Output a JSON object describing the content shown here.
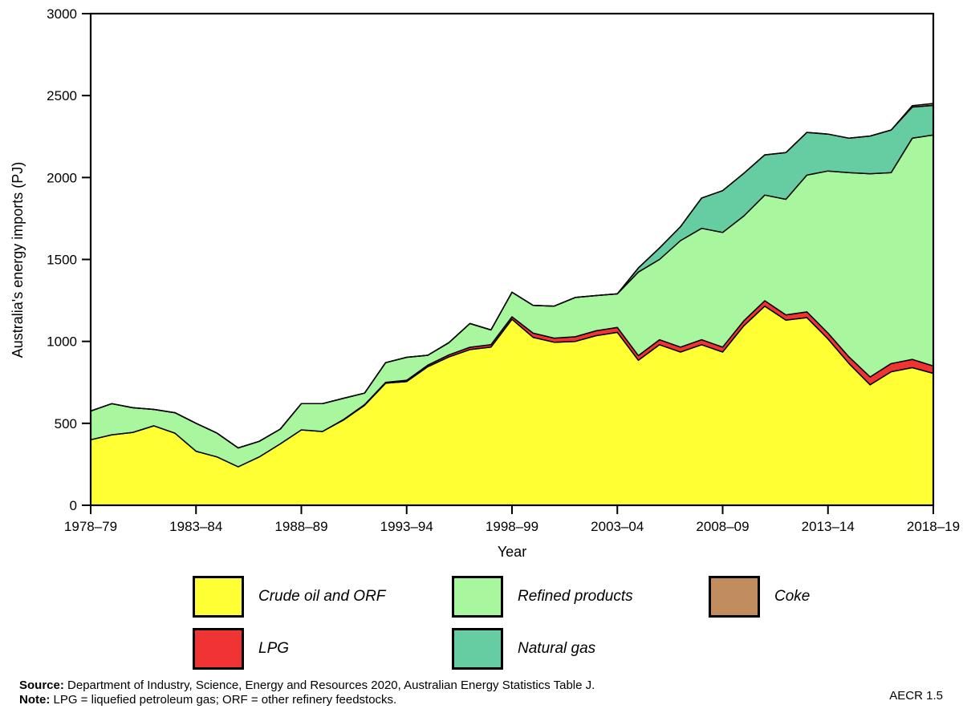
{
  "chart_data": {
    "type": "area",
    "stacked": true,
    "xlabel": "Year",
    "ylabel": "Australia's energy imports (PJ)",
    "ylim": [
      0,
      3000
    ],
    "y_ticks": [
      0,
      500,
      1000,
      1500,
      2000,
      2500,
      3000
    ],
    "x_tick_labels": [
      "1978–79",
      "1983–84",
      "1988–89",
      "1993–94",
      "1998–99",
      "2003–04",
      "2008–09",
      "2013–14",
      "2018–19"
    ],
    "x_tick_every": 5,
    "grid": false,
    "legend_position": "bottom",
    "outline_color": "#000000",
    "categories": [
      "1978–79",
      "1979–80",
      "1980–81",
      "1981–82",
      "1982–83",
      "1983–84",
      "1984–85",
      "1985–86",
      "1986–87",
      "1987–88",
      "1988–89",
      "1989–90",
      "1990–91",
      "1991–92",
      "1992–93",
      "1993–94",
      "1994–95",
      "1995–96",
      "1996–97",
      "1997–98",
      "1998–99",
      "1999–00",
      "2000–01",
      "2001–02",
      "2002–03",
      "2003–04",
      "2004–05",
      "2005–06",
      "2006–07",
      "2007–08",
      "2008–09",
      "2009–10",
      "2010–11",
      "2011–12",
      "2012–13",
      "2013–14",
      "2014–15",
      "2015–16",
      "2016–17",
      "2017–18",
      "2018–19"
    ],
    "series": [
      {
        "name": "Crude oil and ORF",
        "color": "#FFFF33",
        "values": [
          400,
          430,
          445,
          485,
          440,
          330,
          295,
          235,
          295,
          375,
          460,
          450,
          520,
          610,
          745,
          755,
          845,
          905,
          950,
          965,
          1135,
          1025,
          995,
          1000,
          1035,
          1055,
          885,
          980,
          935,
          980,
          935,
          1095,
          1215,
          1130,
          1145,
          1015,
          865,
          735,
          815,
          840,
          805
        ]
      },
      {
        "name": "LPG",
        "color": "#F03433",
        "values": [
          0,
          0,
          0,
          0,
          0,
          0,
          0,
          0,
          0,
          0,
          0,
          0,
          3,
          4,
          5,
          8,
          10,
          12,
          14,
          15,
          15,
          25,
          25,
          28,
          30,
          30,
          28,
          30,
          30,
          30,
          30,
          30,
          33,
          32,
          35,
          35,
          40,
          48,
          50,
          50,
          45
        ]
      },
      {
        "name": "Refined products",
        "color": "#A8F69E",
        "values": [
          175,
          190,
          150,
          100,
          125,
          170,
          145,
          115,
          95,
          90,
          160,
          170,
          130,
          70,
          120,
          140,
          60,
          75,
          145,
          90,
          150,
          170,
          195,
          240,
          215,
          205,
          510,
          490,
          650,
          680,
          700,
          640,
          645,
          705,
          835,
          990,
          1125,
          1240,
          1165,
          1350,
          1410
        ]
      },
      {
        "name": "Natural gas",
        "color": "#66CDA3",
        "values": [
          0,
          0,
          0,
          0,
          0,
          0,
          0,
          0,
          0,
          0,
          0,
          0,
          0,
          0,
          0,
          0,
          0,
          0,
          0,
          0,
          0,
          0,
          0,
          0,
          0,
          0,
          25,
          70,
          85,
          185,
          255,
          260,
          245,
          285,
          260,
          225,
          210,
          230,
          260,
          190,
          180
        ]
      },
      {
        "name": "Coke",
        "color": "#C18D5F",
        "values": [
          0,
          0,
          0,
          0,
          0,
          0,
          0,
          0,
          0,
          0,
          0,
          0,
          0,
          0,
          0,
          0,
          0,
          0,
          0,
          0,
          0,
          0,
          0,
          0,
          0,
          0,
          0,
          0,
          0,
          0,
          0,
          0,
          0,
          0,
          0,
          0,
          0,
          0,
          0,
          8,
          12
        ]
      }
    ]
  },
  "legend": {
    "items": [
      {
        "label": "Crude oil and ORF",
        "color": "#FFFF33"
      },
      {
        "label": "Refined products",
        "color": "#A8F69E"
      },
      {
        "label": "Coke",
        "color": "#C18D5F"
      },
      {
        "label": "LPG",
        "color": "#F03433"
      },
      {
        "label": "Natural gas",
        "color": "#66CDA3"
      }
    ]
  },
  "footer": {
    "source_label": "Source:",
    "source_text": " Department of Industry, Science, Energy and Resources 2020, Australian Energy Statistics Table J.",
    "note_label": "Note:",
    "note_text": " LPG = liquefied petroleum gas; ORF = other refinery feedstocks.",
    "figure_ref": "AECR 1.5"
  }
}
